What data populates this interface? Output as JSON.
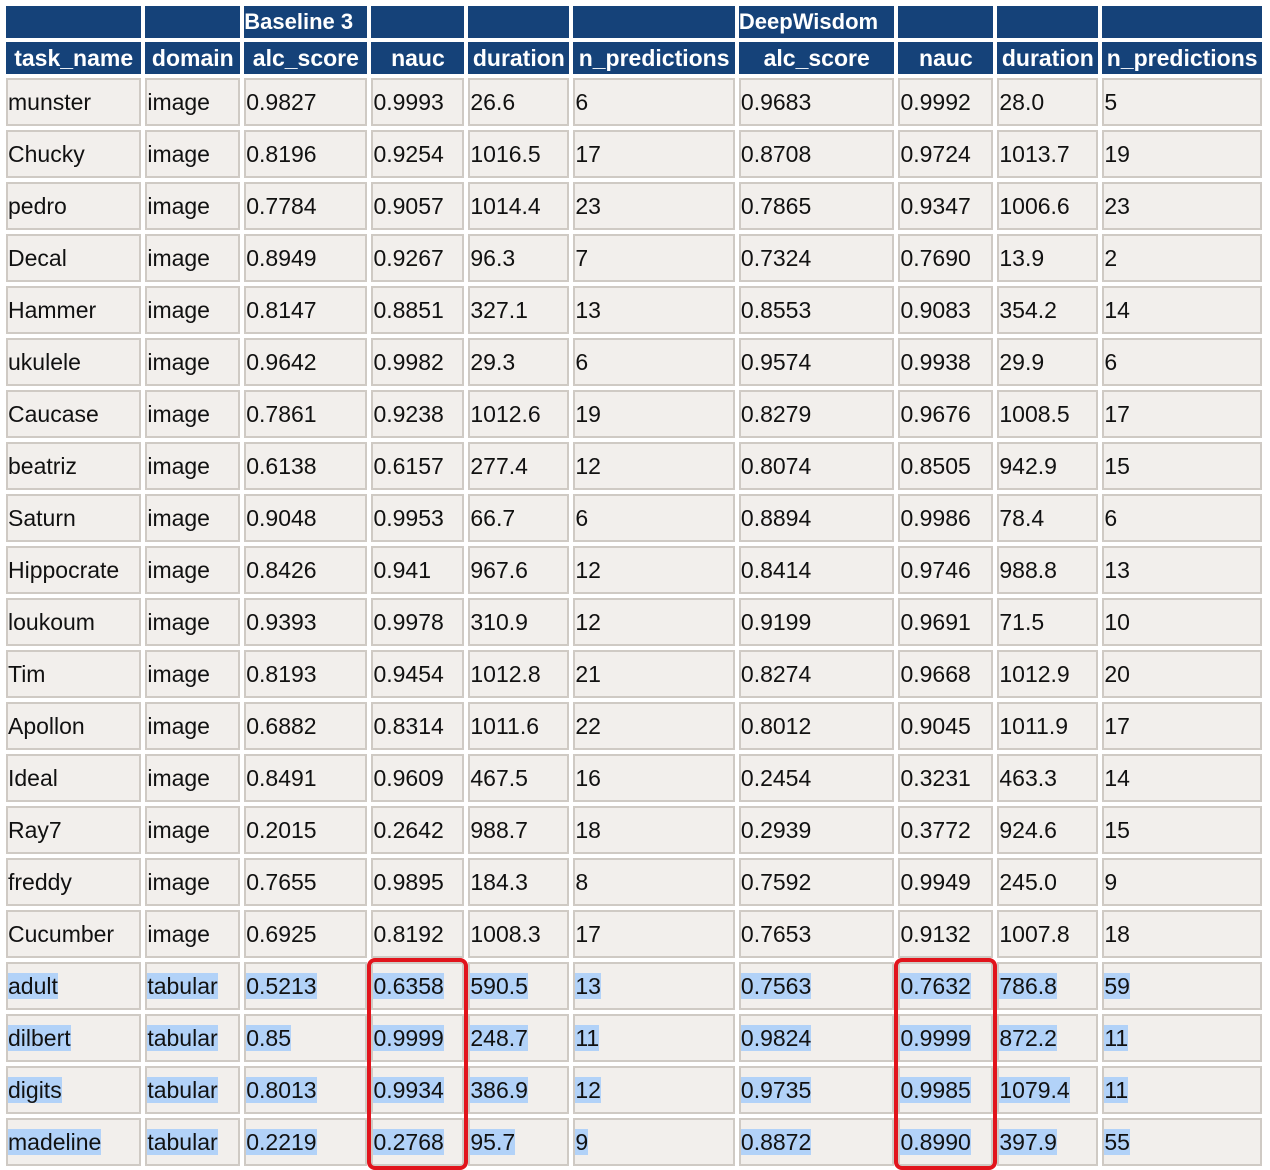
{
  "groups": [
    "",
    "",
    "Baseline 3",
    "",
    "",
    "",
    "DeepWisdom",
    "",
    "",
    ""
  ],
  "columns": [
    "task_name",
    "domain",
    "alc_score",
    "nauc",
    "duration",
    "n_predictions",
    "alc_score",
    "nauc",
    "duration",
    "n_predictions"
  ],
  "rows": [
    [
      "munster",
      "image",
      "0.9827",
      "0.9993",
      "26.6",
      "6",
      "0.9683",
      "0.9992",
      "28.0",
      "5"
    ],
    [
      "Chucky",
      "image",
      "0.8196",
      "0.9254",
      "1016.5",
      "17",
      "0.8708",
      "0.9724",
      "1013.7",
      "19"
    ],
    [
      "pedro",
      "image",
      "0.7784",
      "0.9057",
      "1014.4",
      "23",
      "0.7865",
      "0.9347",
      "1006.6",
      "23"
    ],
    [
      "Decal",
      "image",
      "0.8949",
      "0.9267",
      "96.3",
      "7",
      "0.7324",
      "0.7690",
      "13.9",
      "2"
    ],
    [
      "Hammer",
      "image",
      "0.8147",
      "0.8851",
      "327.1",
      "13",
      "0.8553",
      "0.9083",
      "354.2",
      "14"
    ],
    [
      "ukulele",
      "image",
      "0.9642",
      "0.9982",
      "29.3",
      "6",
      "0.9574",
      "0.9938",
      "29.9",
      "6"
    ],
    [
      "Caucase",
      "image",
      "0.7861",
      "0.9238",
      "1012.6",
      "19",
      "0.8279",
      "0.9676",
      "1008.5",
      "17"
    ],
    [
      "beatriz",
      "image",
      "0.6138",
      "0.6157",
      "277.4",
      "12",
      "0.8074",
      "0.8505",
      "942.9",
      "15"
    ],
    [
      "Saturn",
      "image",
      "0.9048",
      "0.9953",
      "66.7",
      "6",
      "0.8894",
      "0.9986",
      "78.4",
      "6"
    ],
    [
      "Hippocrate",
      "image",
      "0.8426",
      "0.941",
      "967.6",
      "12",
      "0.8414",
      "0.9746",
      "988.8",
      "13"
    ],
    [
      "loukoum",
      "image",
      "0.9393",
      "0.9978",
      "310.9",
      "12",
      "0.9199",
      "0.9691",
      "71.5",
      "10"
    ],
    [
      "Tim",
      "image",
      "0.8193",
      "0.9454",
      "1012.8",
      "21",
      "0.8274",
      "0.9668",
      "1012.9",
      "20"
    ],
    [
      "Apollon",
      "image",
      "0.6882",
      "0.8314",
      "1011.6",
      "22",
      "0.8012",
      "0.9045",
      "1011.9",
      "17"
    ],
    [
      "Ideal",
      "image",
      "0.8491",
      "0.9609",
      "467.5",
      "16",
      "0.2454",
      "0.3231",
      "463.3",
      "14"
    ],
    [
      "Ray7",
      "image",
      "0.2015",
      "0.2642",
      "988.7",
      "18",
      "0.2939",
      "0.3772",
      "924.6",
      "15"
    ],
    [
      "freddy",
      "image",
      "0.7655",
      "0.9895",
      "184.3",
      "8",
      "0.7592",
      "0.9949",
      "245.0",
      "9"
    ],
    [
      "Cucumber",
      "image",
      "0.6925",
      "0.8192",
      "1008.3",
      "17",
      "0.7653",
      "0.9132",
      "1007.8",
      "18"
    ],
    [
      "adult",
      "tabular",
      "0.5213",
      "0.6358",
      "590.5",
      "13",
      "0.7563",
      "0.7632",
      "786.8",
      "59"
    ],
    [
      "dilbert",
      "tabular",
      "0.85",
      "0.9999",
      "248.7",
      "11",
      "0.9824",
      "0.9999",
      "872.2",
      "11"
    ],
    [
      "digits",
      "tabular",
      "0.8013",
      "0.9934",
      "386.9",
      "12",
      "0.9735",
      "0.9985",
      "1079.4",
      "11"
    ],
    [
      "madeline",
      "tabular",
      "0.2219",
      "0.2768",
      "95.7",
      "9",
      "0.8872",
      "0.8990",
      "397.9",
      "55"
    ]
  ],
  "selected_rows": [
    17,
    18,
    19,
    20
  ],
  "highlighted_columns": [
    3,
    7
  ],
  "colors": {
    "header_bg": "#154279",
    "header_text": "#ffffff",
    "cell_bg": "#f2efec",
    "cell_border": "#cfcac4",
    "selection": "#b2d2f8",
    "highlight_box": "#e1141c"
  }
}
